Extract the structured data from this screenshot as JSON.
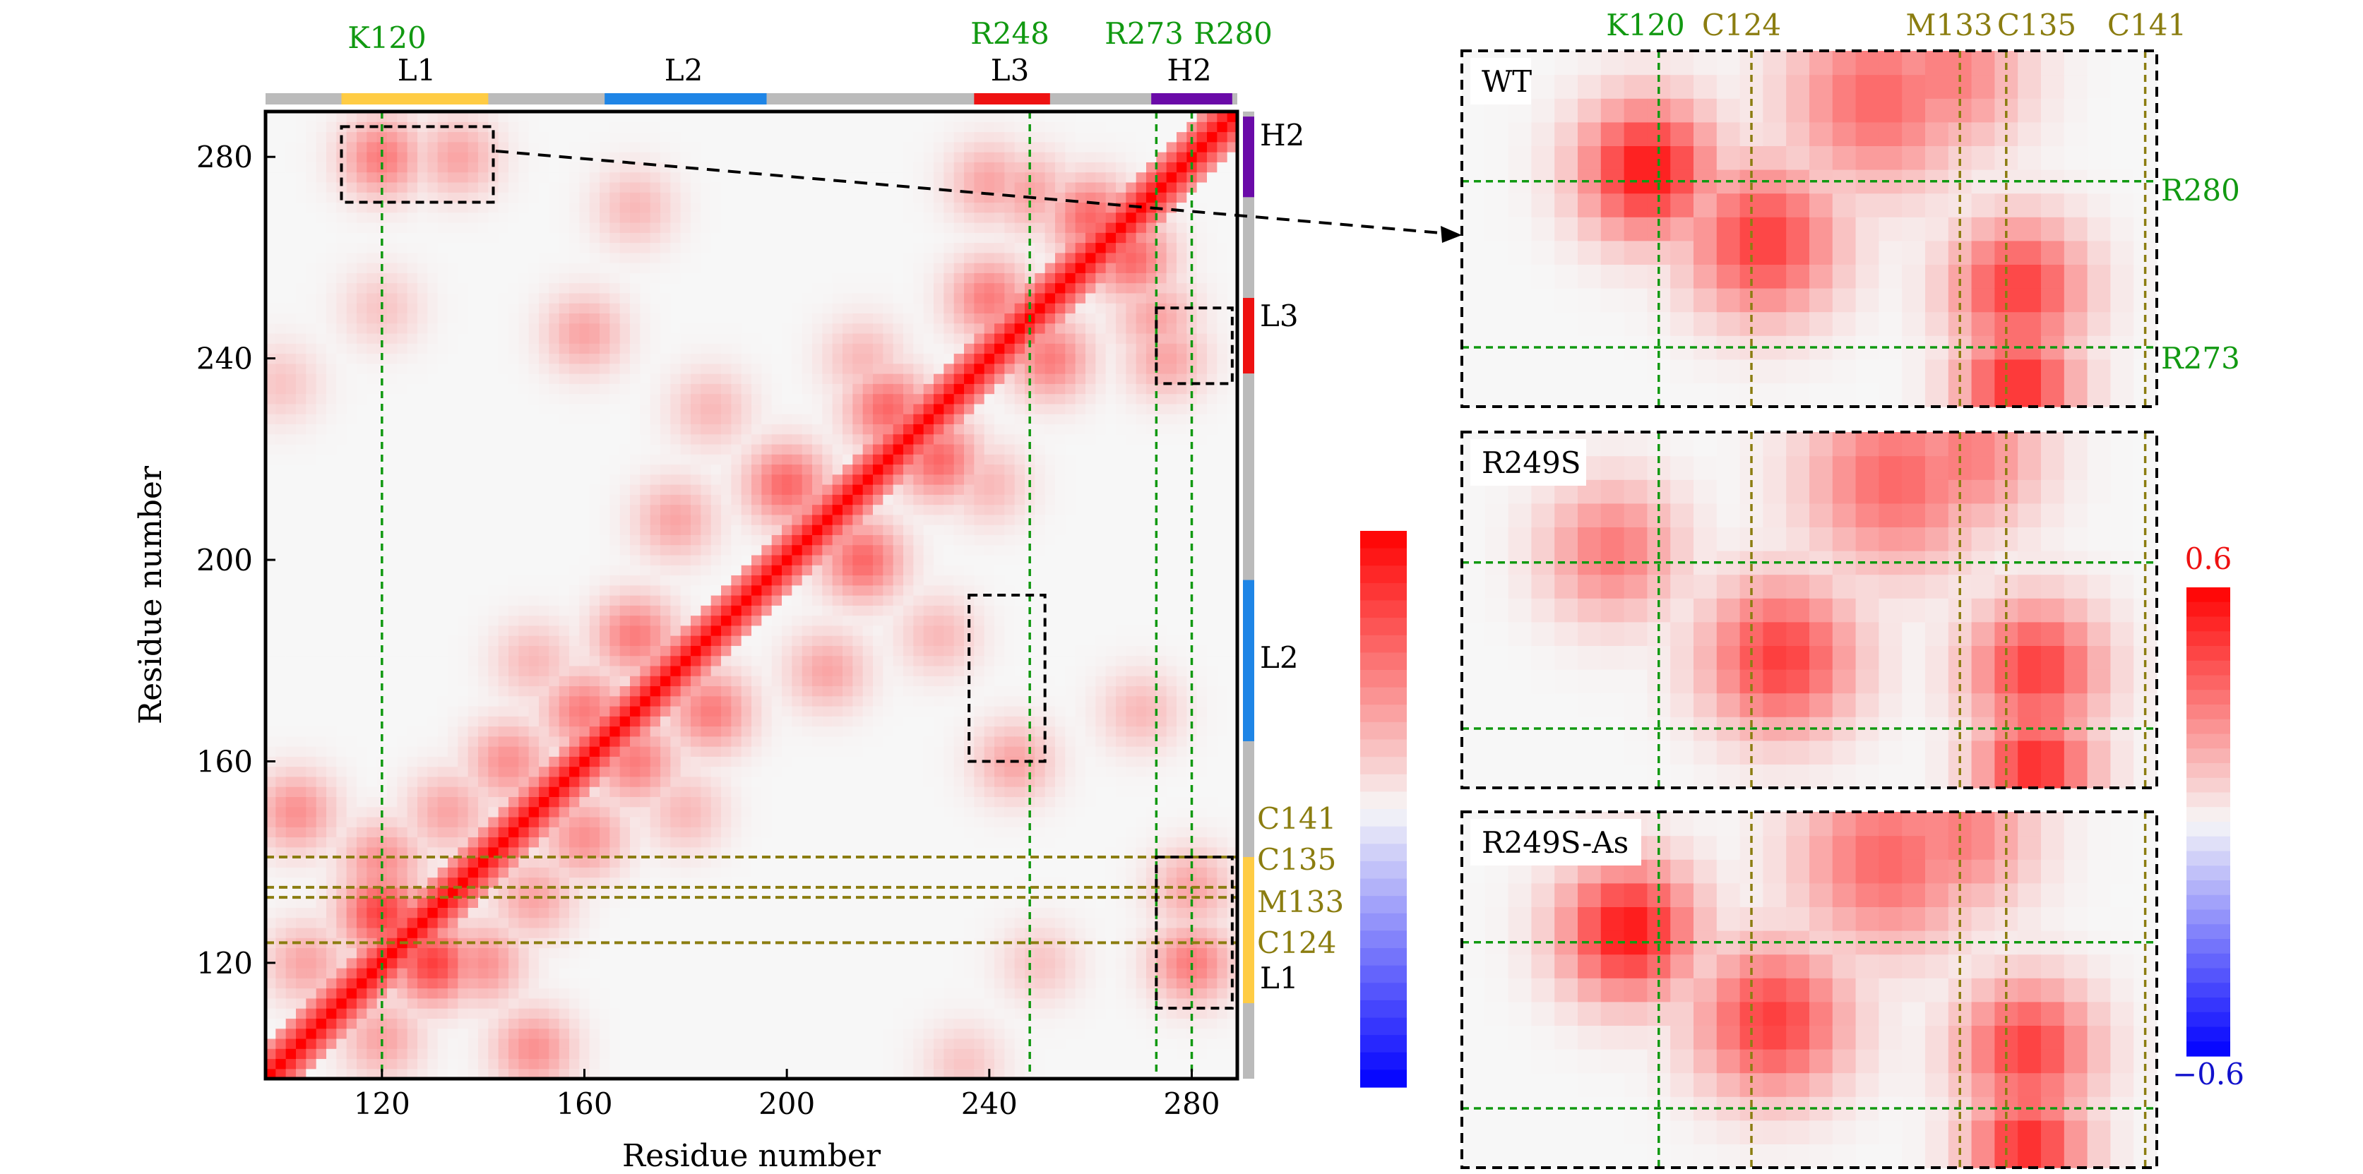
{
  "chart_data": {
    "type": "heatmap",
    "colormap": {
      "low": "#0000ff",
      "mid": "#f7f7f7",
      "high": "#ff0000"
    },
    "colors": {
      "green": "#119911",
      "olive": "#8b7d10",
      "black": "#000000",
      "L1": "#ffcc44",
      "L2": "#1f85e6",
      "L3": "#ee1111",
      "H2": "#6a0aa8",
      "gray": "#bbbbbb"
    },
    "main": {
      "xlabel": "Residue number",
      "ylabel": "Residue number",
      "range": [
        97,
        289
      ],
      "ticks": [
        120,
        160,
        200,
        240,
        280
      ],
      "tick_labels": [
        "120",
        "160",
        "200",
        "240",
        "280"
      ],
      "green_lines": [
        {
          "label": "K120",
          "res": 120
        },
        {
          "label": "R248",
          "res": 248
        },
        {
          "label": "R273",
          "res": 273
        },
        {
          "label": "R280",
          "res": 280
        }
      ],
      "olive_lines": [
        {
          "label": "C141",
          "res": 141
        },
        {
          "label": "C135",
          "res": 135
        },
        {
          "label": "M133",
          "res": 133
        },
        {
          "label": "C124",
          "res": 124
        }
      ],
      "regions": [
        {
          "name": "L1",
          "start": 112,
          "end": 141
        },
        {
          "name": "L2",
          "start": 164,
          "end": 196
        },
        {
          "name": "L3",
          "start": 237,
          "end": 252
        },
        {
          "name": "H2",
          "start": 272,
          "end": 288
        }
      ],
      "boxes": [
        {
          "x": [
            112,
            142
          ],
          "y": [
            271,
            286
          ]
        },
        {
          "x": [
            236,
            251
          ],
          "y": [
            160,
            193
          ]
        },
        {
          "x": [
            273,
            288
          ],
          "y": [
            235,
            250
          ]
        },
        {
          "x": [
            273,
            288
          ],
          "y": [
            111,
            141
          ]
        }
      ],
      "diagonal_value": 0.6,
      "contact_features": [
        {
          "res1": 120,
          "res2": 130,
          "value": 0.45
        },
        {
          "res1": 120,
          "res2": 140,
          "value": 0.25
        },
        {
          "res1": 133,
          "res2": 150,
          "value": 0.2
        },
        {
          "res1": 145,
          "res2": 160,
          "value": 0.25
        },
        {
          "res1": 160,
          "res2": 170,
          "value": 0.3
        },
        {
          "res1": 170,
          "res2": 185,
          "value": 0.3
        },
        {
          "res1": 200,
          "res2": 215,
          "value": 0.35
        },
        {
          "res1": 220,
          "res2": 230,
          "value": 0.35
        },
        {
          "res1": 240,
          "res2": 252,
          "value": 0.3
        },
        {
          "res1": 260,
          "res2": 268,
          "value": 0.35
        },
        {
          "res1": 120,
          "res2": 280,
          "value": 0.3
        },
        {
          "res1": 135,
          "res2": 280,
          "value": 0.2
        },
        {
          "res1": 240,
          "res2": 275,
          "value": 0.2
        },
        {
          "res1": 160,
          "res2": 245,
          "value": 0.2
        },
        {
          "res1": 150,
          "res2": 180,
          "value": 0.15
        },
        {
          "res1": 185,
          "res2": 230,
          "value": 0.15
        },
        {
          "res1": 103,
          "res2": 150,
          "value": 0.25
        },
        {
          "res1": 105,
          "res2": 120,
          "value": 0.2
        },
        {
          "res1": 178,
          "res2": 208,
          "value": 0.2
        },
        {
          "res1": 120,
          "res2": 250,
          "value": 0.12
        },
        {
          "res1": 170,
          "res2": 270,
          "value": 0.15
        },
        {
          "res1": 248,
          "res2": 273,
          "value": 0.2
        },
        {
          "res1": 215,
          "res2": 240,
          "value": 0.15
        },
        {
          "res1": 100,
          "res2": 235,
          "value": 0.12
        }
      ]
    },
    "colorbar_main": {
      "min": -0.6,
      "max": 0.6
    },
    "zoom": {
      "x_range": [
        112,
        142
      ],
      "y_range": [
        271,
        286
      ],
      "x_labels": [
        {
          "label": "K120",
          "res": 120,
          "kind": "green"
        },
        {
          "label": "C124",
          "res": 124,
          "kind": "olive"
        },
        {
          "label": "M133",
          "res": 133,
          "kind": "olive"
        },
        {
          "label": "C135",
          "res": 135,
          "kind": "olive"
        },
        {
          "label": "C141",
          "res": 141,
          "kind": "olive"
        }
      ],
      "y_labels": [
        {
          "label": "R280",
          "res": 280
        },
        {
          "label": "R273",
          "res": 273
        }
      ],
      "panels": [
        {
          "name": "WT",
          "variant": 0
        },
        {
          "name": "R249S",
          "variant": 1
        },
        {
          "name": "R249S-As",
          "variant": 2
        }
      ]
    },
    "colorbar_zoom": {
      "min": -0.6,
      "max": 0.6,
      "min_label": "−0.6",
      "max_label": "0.6"
    }
  }
}
